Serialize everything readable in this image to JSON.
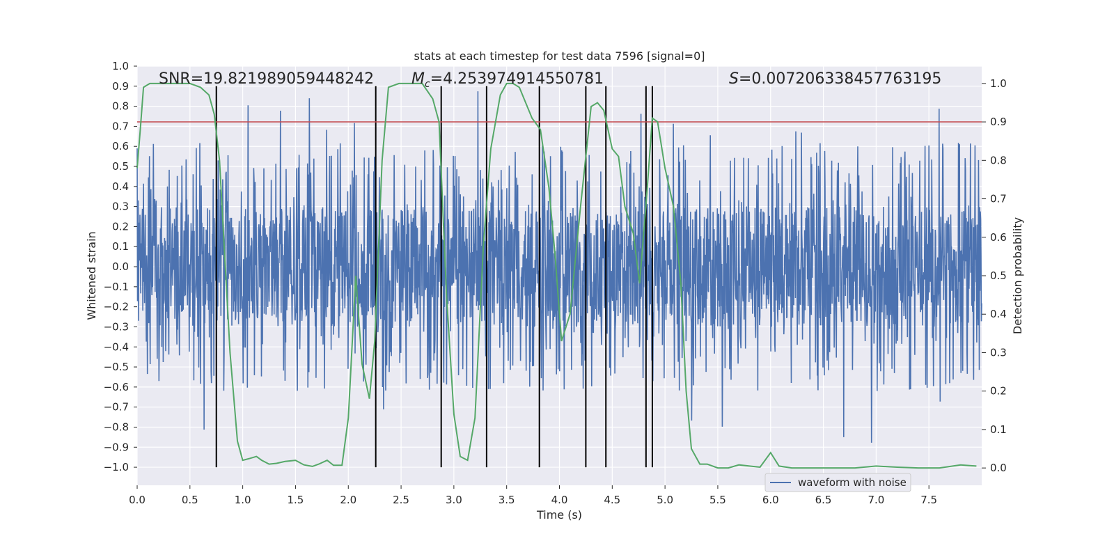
{
  "chart_data": {
    "type": "line",
    "title": "stats at each timestep for test data 7596 [signal=0]",
    "xlabel": "Time (s)",
    "ylabel": "Whitened strain",
    "y2label": "Detection probability",
    "xlim": [
      0.0,
      8.0
    ],
    "ylim": [
      -1.09,
      1.0
    ],
    "y2lim": [
      -0.045,
      1.045
    ],
    "xticks": [
      "0.0",
      "0.5",
      "1.0",
      "1.5",
      "2.0",
      "2.5",
      "3.0",
      "3.5",
      "4.0",
      "4.5",
      "5.0",
      "5.5",
      "6.0",
      "6.5",
      "7.0",
      "7.5"
    ],
    "xtick_values": [
      0.0,
      0.5,
      1.0,
      1.5,
      2.0,
      2.5,
      3.0,
      3.5,
      4.0,
      4.5,
      5.0,
      5.5,
      6.0,
      6.5,
      7.0,
      7.5
    ],
    "yticks": [
      "1.0",
      "0.9",
      "0.8",
      "0.7",
      "0.6",
      "0.5",
      "0.4",
      "0.3",
      "0.2",
      "0.1",
      "0.0",
      "−0.1",
      "−0.2",
      "−0.3",
      "−0.4",
      "−0.5",
      "−0.6",
      "−0.7",
      "−0.8",
      "−0.9",
      "−1.0"
    ],
    "ytick_values": [
      1.0,
      0.9,
      0.8,
      0.7,
      0.6,
      0.5,
      0.4,
      0.3,
      0.2,
      0.1,
      0.0,
      -0.1,
      -0.2,
      -0.3,
      -0.4,
      -0.5,
      -0.6,
      -0.7,
      -0.8,
      -0.9,
      -1.0
    ],
    "y2ticks": [
      "1.0",
      "0.9",
      "0.8",
      "0.7",
      "0.6",
      "0.5",
      "0.4",
      "0.3",
      "0.2",
      "0.1",
      "0.0"
    ],
    "y2tick_values": [
      1.0,
      0.9,
      0.8,
      0.7,
      0.6,
      0.5,
      0.4,
      0.3,
      0.2,
      0.1,
      0.0
    ],
    "annotations": {
      "snr": "SNR=19.821989059448242",
      "mc_symbol": "M",
      "mc_sub": "c",
      "mc_value": "=4.253974914550781",
      "s_symbol": "S",
      "s_value": "=0.007206338457763195"
    },
    "threshold_y2": 0.9,
    "vlines": [
      0.75,
      2.26,
      2.88,
      3.31,
      3.81,
      4.25,
      4.44,
      4.82,
      4.88
    ],
    "vline_range": [
      -1.0,
      0.9
    ],
    "waveform": {
      "name": "waveform with noise",
      "t_range": [
        0.0,
        8.0
      ],
      "samples": 2400,
      "bulk_amplitude": 0.3,
      "spike_amplitude": 0.62
    },
    "probability": {
      "t": [
        0.0,
        0.03,
        0.06,
        0.12,
        0.2,
        0.3,
        0.4,
        0.5,
        0.6,
        0.68,
        0.73,
        0.78,
        0.82,
        0.88,
        0.95,
        1.0,
        1.07,
        1.13,
        1.18,
        1.25,
        1.32,
        1.4,
        1.5,
        1.58,
        1.66,
        1.72,
        1.8,
        1.86,
        1.94,
        2.0,
        2.07,
        2.13,
        2.2,
        2.25,
        2.32,
        2.38,
        2.48,
        2.58,
        2.7,
        2.8,
        2.86,
        2.93,
        3.0,
        3.06,
        3.13,
        3.2,
        3.28,
        3.35,
        3.44,
        3.5,
        3.56,
        3.62,
        3.68,
        3.74,
        3.82,
        3.9,
        3.96,
        4.02,
        4.1,
        4.2,
        4.3,
        4.36,
        4.42,
        4.5,
        4.56,
        4.62,
        4.7,
        4.76,
        4.83,
        4.88,
        4.93,
        5.0,
        5.08,
        5.15,
        5.2,
        5.25,
        5.33,
        5.4,
        5.5,
        5.6,
        5.7,
        5.8,
        5.9,
        6.0,
        6.08,
        6.2,
        6.4,
        6.6,
        6.8,
        7.0,
        7.2,
        7.4,
        7.6,
        7.8,
        7.95
      ],
      "values": [
        0.78,
        0.88,
        0.99,
        1.0,
        1.0,
        1.0,
        1.0,
        1.0,
        0.99,
        0.97,
        0.92,
        0.8,
        0.6,
        0.3,
        0.07,
        0.02,
        0.025,
        0.03,
        0.02,
        0.01,
        0.012,
        0.017,
        0.02,
        0.008,
        0.004,
        0.01,
        0.02,
        0.007,
        0.007,
        0.13,
        0.5,
        0.27,
        0.18,
        0.33,
        0.8,
        0.99,
        1.0,
        1.0,
        1.0,
        0.96,
        0.9,
        0.45,
        0.14,
        0.03,
        0.02,
        0.13,
        0.58,
        0.83,
        0.97,
        1.0,
        1.0,
        0.99,
        0.95,
        0.91,
        0.88,
        0.73,
        0.55,
        0.33,
        0.4,
        0.68,
        0.94,
        0.95,
        0.93,
        0.83,
        0.81,
        0.68,
        0.61,
        0.48,
        0.72,
        0.91,
        0.9,
        0.78,
        0.68,
        0.48,
        0.2,
        0.05,
        0.01,
        0.01,
        0.0,
        0.0,
        0.008,
        0.005,
        0.002,
        0.04,
        0.005,
        0.0,
        0.0,
        0.0,
        0.0,
        0.005,
        0.002,
        0.0,
        0.0,
        0.008,
        0.005
      ]
    },
    "colors": {
      "background": "#EAEAF2",
      "grid": "#FFFFFF",
      "waveform": "#4C72B0",
      "probability": "#55A868",
      "threshold": "#C44E52",
      "vline": "#000000"
    },
    "legend_position": "lower-right"
  }
}
